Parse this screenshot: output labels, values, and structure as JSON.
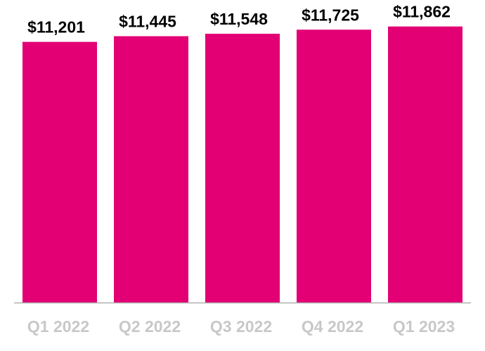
{
  "chart_data": {
    "type": "bar",
    "categories": [
      "Q1 2022",
      "Q2 2022",
      "Q3 2022",
      "Q4 2022",
      "Q1 2023"
    ],
    "values": [
      11201,
      11445,
      11548,
      11725,
      11862
    ],
    "value_labels": [
      "$11,201",
      "$11,445",
      "$11,548",
      "$11,725",
      "$11,862"
    ],
    "ylim": [
      0,
      13000
    ],
    "grid": false,
    "legend": "none",
    "bar_color": "#E20074",
    "axis_color": "#b0b0b0"
  }
}
